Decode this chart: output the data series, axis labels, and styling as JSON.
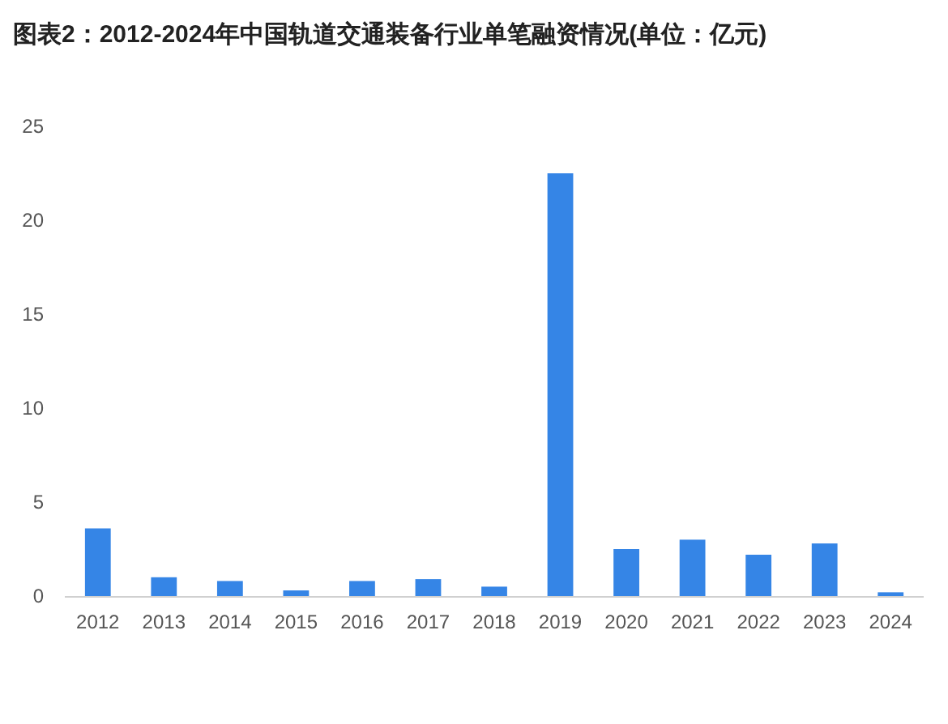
{
  "chart_data": {
    "type": "bar",
    "title": "图表2：2012-2024年中国轨道交通装备行业单笔融资情况(单位：亿元)",
    "categories": [
      "2012",
      "2013",
      "2014",
      "2015",
      "2016",
      "2017",
      "2018",
      "2019",
      "2020",
      "2021",
      "2022",
      "2023",
      "2024"
    ],
    "values": [
      3.6,
      1.0,
      0.8,
      0.3,
      0.8,
      0.9,
      0.5,
      22.5,
      2.5,
      3.0,
      2.2,
      2.8,
      0.2
    ],
    "color": "#3585e6",
    "ylim": [
      0,
      25
    ],
    "yticks": [
      0,
      5,
      10,
      15,
      20,
      25
    ],
    "grid": false
  }
}
